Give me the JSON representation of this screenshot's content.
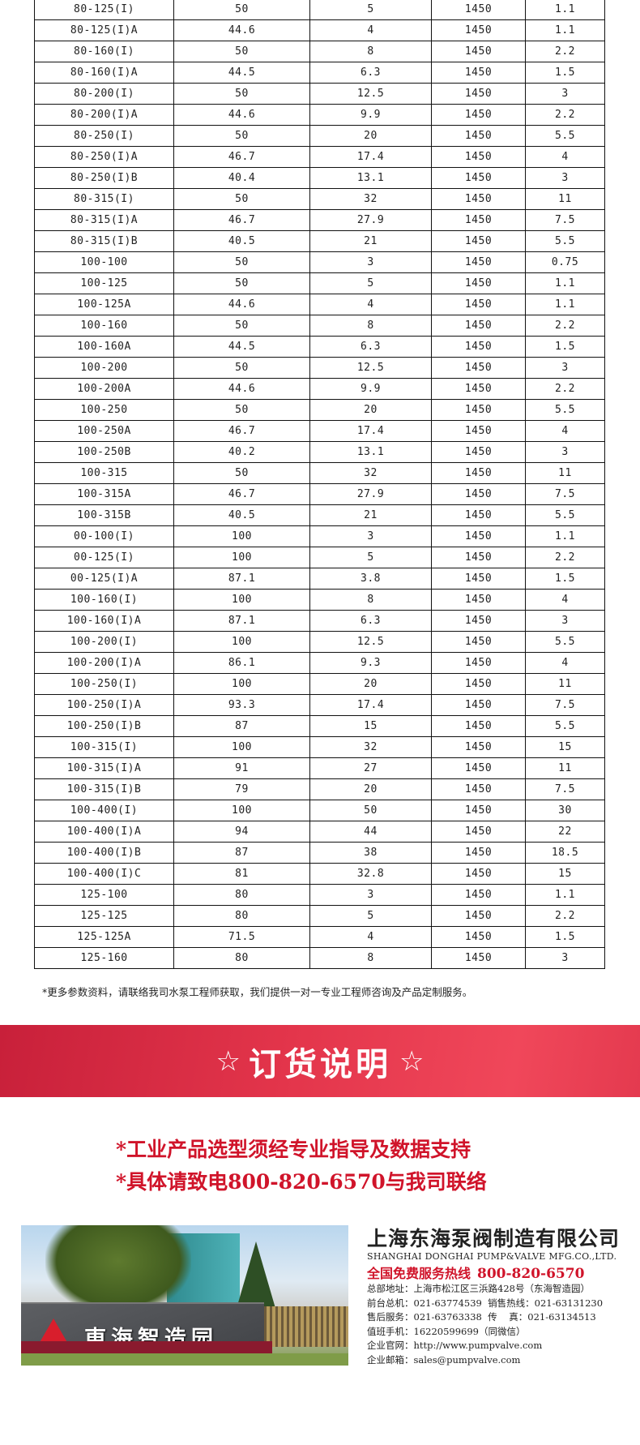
{
  "table": {
    "rows": [
      [
        "80-125(I)",
        "50",
        "5",
        "1450",
        "1.1"
      ],
      [
        "80-125(I)A",
        "44.6",
        "4",
        "1450",
        "1.1"
      ],
      [
        "80-160(I)",
        "50",
        "8",
        "1450",
        "2.2"
      ],
      [
        "80-160(I)A",
        "44.5",
        "6.3",
        "1450",
        "1.5"
      ],
      [
        "80-200(I)",
        "50",
        "12.5",
        "1450",
        "3"
      ],
      [
        "80-200(I)A",
        "44.6",
        "9.9",
        "1450",
        "2.2"
      ],
      [
        "80-250(I)",
        "50",
        "20",
        "1450",
        "5.5"
      ],
      [
        "80-250(I)A",
        "46.7",
        "17.4",
        "1450",
        "4"
      ],
      [
        "80-250(I)B",
        "40.4",
        "13.1",
        "1450",
        "3"
      ],
      [
        "80-315(I)",
        "50",
        "32",
        "1450",
        "11"
      ],
      [
        "80-315(I)A",
        "46.7",
        "27.9",
        "1450",
        "7.5"
      ],
      [
        "80-315(I)B",
        "40.5",
        "21",
        "1450",
        "5.5"
      ],
      [
        "100-100",
        "50",
        "3",
        "1450",
        "0.75"
      ],
      [
        "100-125",
        "50",
        "5",
        "1450",
        "1.1"
      ],
      [
        "100-125A",
        "44.6",
        "4",
        "1450",
        "1.1"
      ],
      [
        "100-160",
        "50",
        "8",
        "1450",
        "2.2"
      ],
      [
        "100-160A",
        "44.5",
        "6.3",
        "1450",
        "1.5"
      ],
      [
        "100-200",
        "50",
        "12.5",
        "1450",
        "3"
      ],
      [
        "100-200A",
        "44.6",
        "9.9",
        "1450",
        "2.2"
      ],
      [
        "100-250",
        "50",
        "20",
        "1450",
        "5.5"
      ],
      [
        "100-250A",
        "46.7",
        "17.4",
        "1450",
        "4"
      ],
      [
        "100-250B",
        "40.2",
        "13.1",
        "1450",
        "3"
      ],
      [
        "100-315",
        "50",
        "32",
        "1450",
        "11"
      ],
      [
        "100-315A",
        "46.7",
        "27.9",
        "1450",
        "7.5"
      ],
      [
        "100-315B",
        "40.5",
        "21",
        "1450",
        "5.5"
      ],
      [
        "00-100(I)",
        "100",
        "3",
        "1450",
        "1.1"
      ],
      [
        "00-125(I)",
        "100",
        "5",
        "1450",
        "2.2"
      ],
      [
        "00-125(I)A",
        "87.1",
        "3.8",
        "1450",
        "1.5"
      ],
      [
        "100-160(I)",
        "100",
        "8",
        "1450",
        "4"
      ],
      [
        "100-160(I)A",
        "87.1",
        "6.3",
        "1450",
        "3"
      ],
      [
        "100-200(I)",
        "100",
        "12.5",
        "1450",
        "5.5"
      ],
      [
        "100-200(I)A",
        "86.1",
        "9.3",
        "1450",
        "4"
      ],
      [
        "100-250(I)",
        "100",
        "20",
        "1450",
        "11"
      ],
      [
        "100-250(I)A",
        "93.3",
        "17.4",
        "1450",
        "7.5"
      ],
      [
        "100-250(I)B",
        "87",
        "15",
        "1450",
        "5.5"
      ],
      [
        "100-315(I)",
        "100",
        "32",
        "1450",
        "15"
      ],
      [
        "100-315(I)A",
        "91",
        "27",
        "1450",
        "11"
      ],
      [
        "100-315(I)B",
        "79",
        "20",
        "1450",
        "7.5"
      ],
      [
        "100-400(I)",
        "100",
        "50",
        "1450",
        "30"
      ],
      [
        "100-400(I)A",
        "94",
        "44",
        "1450",
        "22"
      ],
      [
        "100-400(I)B",
        "87",
        "38",
        "1450",
        "18.5"
      ],
      [
        "100-400(I)C",
        "81",
        "32.8",
        "1450",
        "15"
      ],
      [
        "125-100",
        "80",
        "3",
        "1450",
        "1.1"
      ],
      [
        "125-125",
        "80",
        "5",
        "1450",
        "2.2"
      ],
      [
        "125-125A",
        "71.5",
        "4",
        "1450",
        "1.5"
      ],
      [
        "125-160",
        "80",
        "8",
        "1450",
        "3"
      ]
    ]
  },
  "footnote": "*更多参数资料，请联络我司水泵工程师获取，我们提供一对一专业工程师咨询及产品定制服务。",
  "banner": {
    "star_left": "☆",
    "title": "订货说明",
    "star_right": "☆",
    "color": "#e3354b"
  },
  "notes": [
    "*工业产品选型须经专业指导及数据支持",
    "*具体请致电800-820-6570与我司联络"
  ],
  "photo": {
    "sign_text": "東海智造园"
  },
  "company": {
    "name_cn": "上海东海泵阀制造有限公司",
    "name_en": "SHANGHAI DONGHAI PUMP&VALVE MFG.CO.,LTD.",
    "hotline_label": "全国免费服务热线",
    "hotline_number": "800-820-6570",
    "lines": [
      "总部地址：上海市松江区三浜路428号（东海智造园）",
      "前台总机：021-63774539  销售热线：021-63131230",
      "售后服务：021-63763338  传    真：021-63134513",
      "值班手机：16220599699（同微信）",
      "企业官网：http://www.pumpvalve.com",
      "企业邮箱：sales@pumpvalve.com"
    ]
  }
}
